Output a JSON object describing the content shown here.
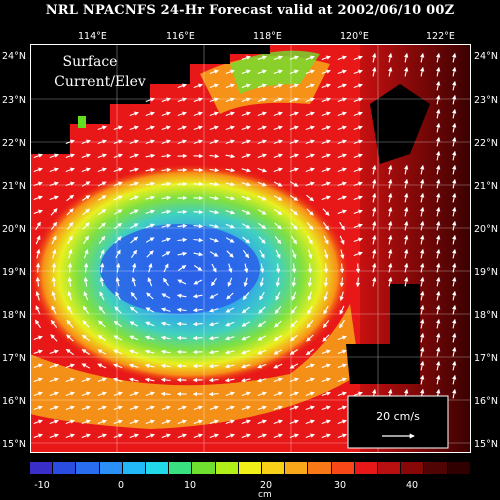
{
  "title": "NRL NPACNFS 24-Hr Forecast valid at 2002/06/10 00Z",
  "panel_label": [
    "Surface",
    "Current/Elev"
  ],
  "lon_ticks": [
    "114°E",
    "116°E",
    "118°E",
    "120°E",
    "122°E"
  ],
  "lat_ticks": [
    "24°N",
    "23°N",
    "22°N",
    "21°N",
    "20°N",
    "19°N",
    "18°N",
    "17°N",
    "16°N",
    "15°N"
  ],
  "legend_vector": {
    "label": "20 cm/s"
  },
  "colorbar": {
    "unit": "cm",
    "labels": [
      "-10",
      "0",
      "10",
      "20",
      "30",
      "40"
    ],
    "colors": [
      "#3a2ec8",
      "#2a4ce0",
      "#2a6cf0",
      "#2a90f8",
      "#22b8f8",
      "#22d8e8",
      "#38e080",
      "#70e030",
      "#b0f018",
      "#f0f018",
      "#f8d018",
      "#f8a818",
      "#f87818",
      "#f84818",
      "#e81818",
      "#b81010",
      "#880808",
      "#500404",
      "#300000"
    ]
  },
  "colors": {
    "land": "#000000",
    "deep": "#3a0000"
  }
}
